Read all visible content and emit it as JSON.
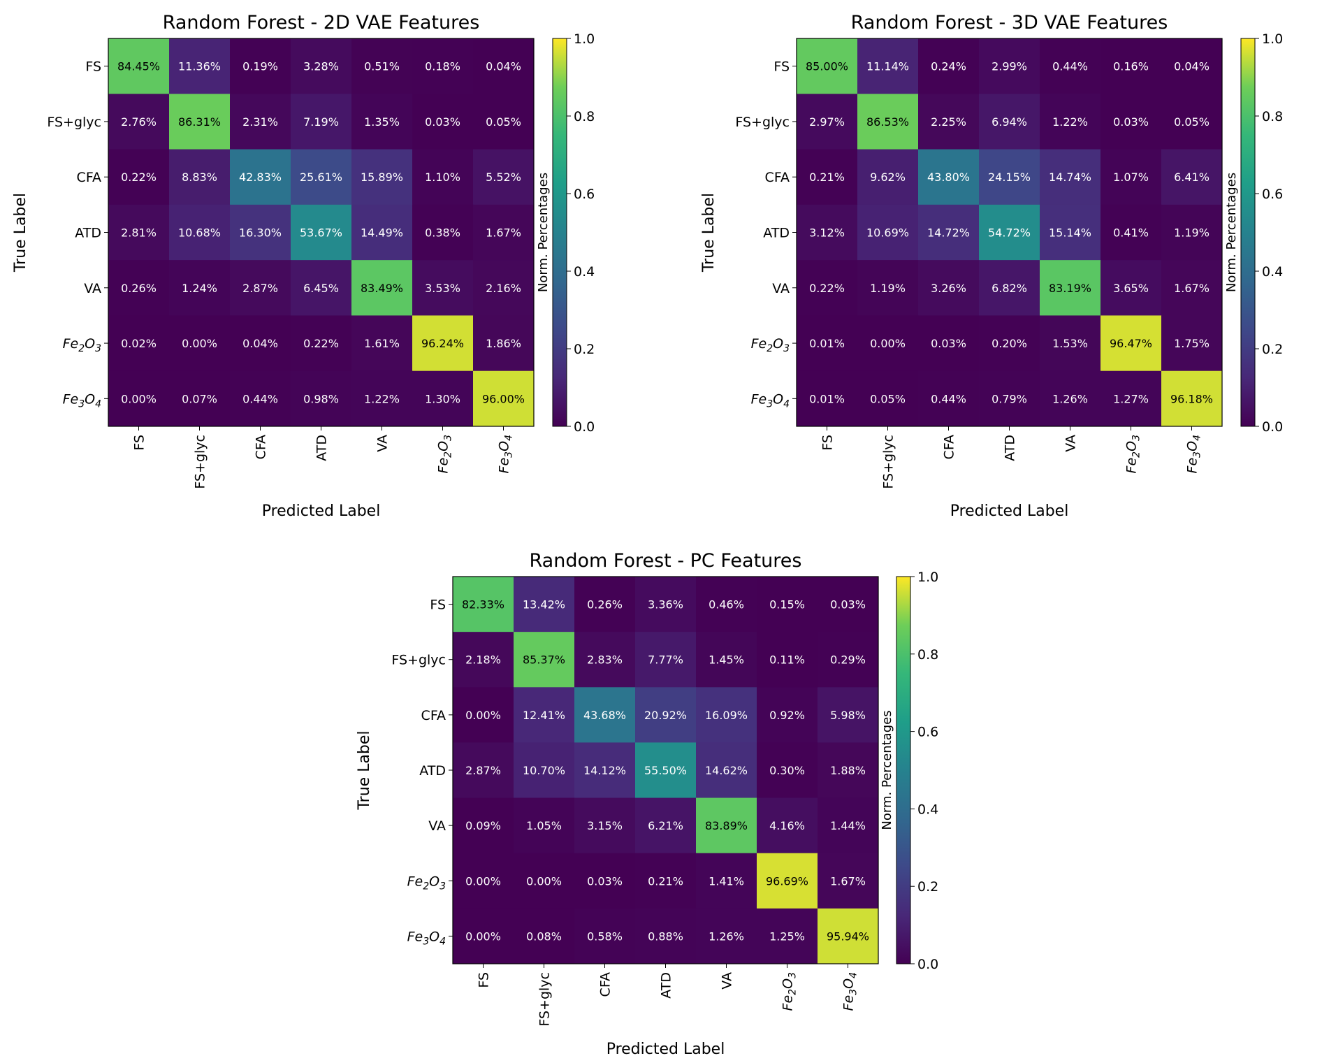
{
  "chart_data": [
    {
      "type": "heatmap",
      "title": "Random Forest - 2D VAE Features",
      "xlabel": "Predicted Label",
      "ylabel": "True Label",
      "colorbar_label": "Norm. Percentages",
      "colorbar_ticks": [
        "0.0",
        "0.2",
        "0.4",
        "0.6",
        "0.8",
        "1.0"
      ],
      "clim": [
        0,
        1
      ],
      "categories": [
        "FS",
        "FS+glyc",
        "CFA",
        "ATD",
        "VA",
        "Fe2O3",
        "Fe3O4"
      ],
      "values": [
        [
          84.45,
          11.36,
          0.19,
          3.28,
          0.51,
          0.18,
          0.04
        ],
        [
          2.76,
          86.31,
          2.31,
          7.19,
          1.35,
          0.03,
          0.05
        ],
        [
          0.22,
          8.83,
          42.83,
          25.61,
          15.89,
          1.1,
          5.52
        ],
        [
          2.81,
          10.68,
          16.3,
          53.67,
          14.49,
          0.38,
          1.67
        ],
        [
          0.26,
          1.24,
          2.87,
          6.45,
          83.49,
          3.53,
          2.16
        ],
        [
          0.02,
          0.0,
          0.04,
          0.22,
          1.61,
          96.24,
          1.86
        ],
        [
          0.0,
          0.07,
          0.44,
          0.98,
          1.22,
          1.3,
          96.0
        ]
      ]
    },
    {
      "type": "heatmap",
      "title": "Random Forest - 3D VAE Features",
      "xlabel": "Predicted Label",
      "ylabel": "True Label",
      "colorbar_label": "Norm. Percentages",
      "colorbar_ticks": [
        "0.0",
        "0.2",
        "0.4",
        "0.6",
        "0.8",
        "1.0"
      ],
      "clim": [
        0,
        1
      ],
      "categories": [
        "FS",
        "FS+glyc",
        "CFA",
        "ATD",
        "VA",
        "Fe2O3",
        "Fe3O4"
      ],
      "values": [
        [
          85.0,
          11.14,
          0.24,
          2.99,
          0.44,
          0.16,
          0.04
        ],
        [
          2.97,
          86.53,
          2.25,
          6.94,
          1.22,
          0.03,
          0.05
        ],
        [
          0.21,
          9.62,
          43.8,
          24.15,
          14.74,
          1.07,
          6.41
        ],
        [
          3.12,
          10.69,
          14.72,
          54.72,
          15.14,
          0.41,
          1.19
        ],
        [
          0.22,
          1.19,
          3.26,
          6.82,
          83.19,
          3.65,
          1.67
        ],
        [
          0.01,
          0.0,
          0.03,
          0.2,
          1.53,
          96.47,
          1.75
        ],
        [
          0.01,
          0.05,
          0.44,
          0.79,
          1.26,
          1.27,
          96.18
        ]
      ]
    },
    {
      "type": "heatmap",
      "title": "Random Forest - PC Features",
      "xlabel": "Predicted Label",
      "ylabel": "True Label",
      "colorbar_label": "Norm. Percentages",
      "colorbar_ticks": [
        "0.0",
        "0.2",
        "0.4",
        "0.6",
        "0.8",
        "1.0"
      ],
      "clim": [
        0,
        1
      ],
      "categories": [
        "FS",
        "FS+glyc",
        "CFA",
        "ATD",
        "VA",
        "Fe2O3",
        "Fe3O4"
      ],
      "values": [
        [
          82.33,
          13.42,
          0.26,
          3.36,
          0.46,
          0.15,
          0.03
        ],
        [
          2.18,
          85.37,
          2.83,
          7.77,
          1.45,
          0.11,
          0.29
        ],
        [
          0.0,
          12.41,
          43.68,
          20.92,
          16.09,
          0.92,
          5.98
        ],
        [
          2.87,
          10.7,
          14.12,
          55.5,
          14.62,
          0.3,
          1.88
        ],
        [
          0.09,
          1.05,
          3.15,
          6.21,
          83.89,
          4.16,
          1.44
        ],
        [
          0.0,
          0.0,
          0.03,
          0.21,
          1.41,
          96.69,
          1.67
        ],
        [
          0.0,
          0.08,
          0.58,
          0.88,
          1.26,
          1.25,
          95.94
        ]
      ]
    }
  ]
}
